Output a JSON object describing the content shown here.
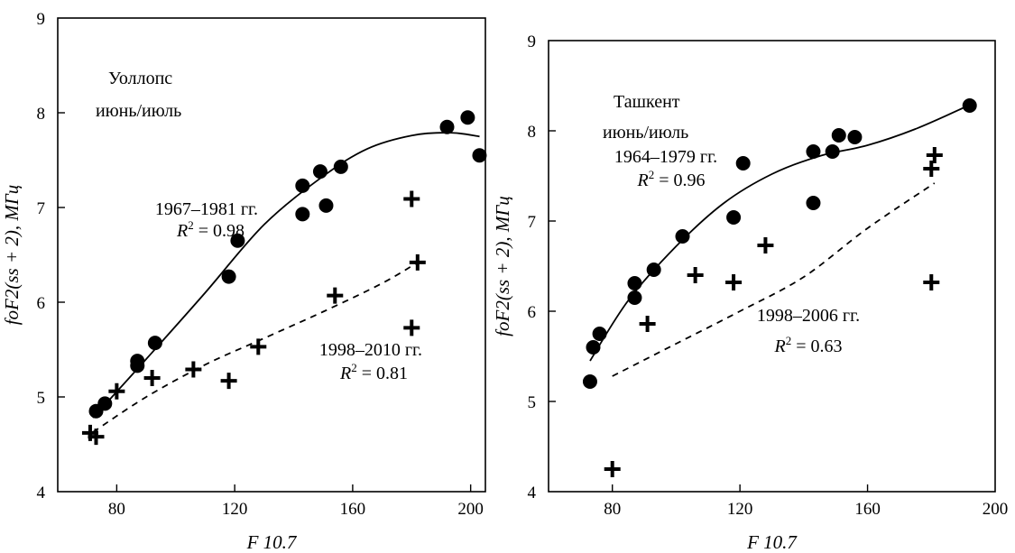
{
  "chart_data": [
    {
      "type": "scatter",
      "xlabel": "F 10.7",
      "ylabel": "foF2(ss + 2), МГц",
      "xlim": [
        60,
        205
      ],
      "ylim": [
        4,
        9
      ],
      "xticks": [
        80,
        120,
        160,
        200
      ],
      "yticks": [
        4,
        5,
        6,
        7,
        8,
        9
      ],
      "station": "Уоллопс",
      "season": "июнь/июль",
      "series": [
        {
          "name": "1967–1981 гг.",
          "r2_label": "R² = 0.98",
          "marker": "circle",
          "fit": "solid",
          "points": [
            [
              73,
              4.85
            ],
            [
              76,
              4.93
            ],
            [
              87,
              5.33
            ],
            [
              87,
              5.38
            ],
            [
              93,
              5.57
            ],
            [
              118,
              6.27
            ],
            [
              121,
              6.65
            ],
            [
              143,
              6.93
            ],
            [
              143,
              7.23
            ],
            [
              149,
              7.38
            ],
            [
              151,
              7.02
            ],
            [
              156,
              7.43
            ],
            [
              192,
              7.85
            ],
            [
              199,
              7.95
            ],
            [
              203,
              7.55
            ]
          ],
          "fit_curve": [
            [
              72,
              4.78
            ],
            [
              90,
              5.4
            ],
            [
              110,
              6.1
            ],
            [
              130,
              6.82
            ],
            [
              150,
              7.33
            ],
            [
              165,
              7.62
            ],
            [
              180,
              7.76
            ],
            [
              193,
              7.79
            ],
            [
              203,
              7.75
            ]
          ]
        },
        {
          "name": "1998–2010 гг.",
          "r2_label": "R² = 0.81",
          "marker": "plus",
          "fit": "dashed",
          "points": [
            [
              71,
              4.62
            ],
            [
              73,
              4.58
            ],
            [
              80,
              5.06
            ],
            [
              92,
              5.2
            ],
            [
              106,
              5.29
            ],
            [
              118,
              5.17
            ],
            [
              128,
              5.53
            ],
            [
              154,
              6.07
            ],
            [
              180,
              7.09
            ],
            [
              180,
              5.73
            ],
            [
              182,
              6.42
            ]
          ],
          "fit_curve": [
            [
              72,
              4.63
            ],
            [
              90,
              5.0
            ],
            [
              110,
              5.34
            ],
            [
              130,
              5.62
            ],
            [
              150,
              5.9
            ],
            [
              170,
              6.2
            ],
            [
              182,
              6.42
            ]
          ]
        }
      ]
    },
    {
      "type": "scatter",
      "xlabel": "F 10.7",
      "ylabel": "foF2(ss + 2), МГц",
      "xlim": [
        60,
        200
      ],
      "ylim": [
        4,
        9
      ],
      "xticks": [
        80,
        120,
        160,
        200
      ],
      "yticks": [
        4,
        5,
        6,
        7,
        8,
        9
      ],
      "station": "Ташкент",
      "season": "июнь/июль",
      "series": [
        {
          "name": "1964–1979 гг.",
          "r2_label": "R² = 0.96",
          "marker": "circle",
          "fit": "solid",
          "points": [
            [
              73,
              5.22
            ],
            [
              74,
              5.6
            ],
            [
              76,
              5.75
            ],
            [
              87,
              6.15
            ],
            [
              87,
              6.31
            ],
            [
              93,
              6.46
            ],
            [
              102,
              6.83
            ],
            [
              118,
              7.04
            ],
            [
              121,
              7.64
            ],
            [
              143,
              7.2
            ],
            [
              143,
              7.77
            ],
            [
              149,
              7.77
            ],
            [
              151,
              7.95
            ],
            [
              156,
              7.93
            ],
            [
              192,
              8.28
            ]
          ],
          "fit_curve": [
            [
              73,
              5.45
            ],
            [
              85,
              6.12
            ],
            [
              100,
              6.72
            ],
            [
              115,
              7.2
            ],
            [
              130,
              7.52
            ],
            [
              145,
              7.72
            ],
            [
              160,
              7.84
            ],
            [
              175,
              8.02
            ],
            [
              191,
              8.27
            ]
          ]
        },
        {
          "name": "1998–2006 гг.",
          "r2_label": "R² = 0.63",
          "marker": "plus",
          "fit": "dashed",
          "points": [
            [
              80,
              4.25
            ],
            [
              91,
              5.86
            ],
            [
              106,
              6.4
            ],
            [
              118,
              6.32
            ],
            [
              128,
              6.73
            ],
            [
              180,
              7.58
            ],
            [
              181,
              7.73
            ],
            [
              180,
              6.32
            ]
          ],
          "fit_curve": [
            [
              80,
              5.28
            ],
            [
              100,
              5.64
            ],
            [
              120,
              6.0
            ],
            [
              140,
              6.38
            ],
            [
              160,
              6.92
            ],
            [
              181,
              7.42
            ]
          ]
        }
      ]
    }
  ]
}
